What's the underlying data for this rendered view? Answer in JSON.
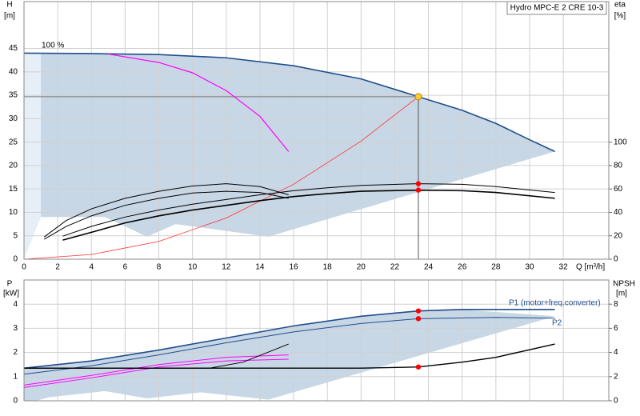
{
  "chart_data": [
    {
      "type": "line",
      "title": "Hydro MPC-E 2 CRE 10-3",
      "annotation": "100 %",
      "ylabel": "H",
      "yunit": "[m]",
      "y2label": "eta",
      "y2unit": "[%]",
      "xlabel": "Q [m³/h]",
      "xlim": [
        0,
        34.7
      ],
      "xticks": [
        0,
        2,
        4,
        6,
        8,
        10,
        12,
        14,
        16,
        18,
        20,
        22,
        24,
        26,
        28,
        30,
        32
      ],
      "ylim": [
        0,
        55
      ],
      "yticks": [
        0,
        5,
        10,
        15,
        20,
        25,
        30,
        35,
        40,
        45
      ],
      "y2lim": [
        0,
        220
      ],
      "y2ticks": [
        0,
        20,
        40,
        60,
        80,
        100
      ],
      "grid": true,
      "areas": [
        {
          "color": "#e6eff8",
          "x": [
            0,
            1,
            1,
            0
          ],
          "values": [
            44,
            44,
            9,
            0
          ]
        },
        {
          "color": "#c8d7e6",
          "x": [
            1,
            4,
            8,
            12,
            16,
            20,
            23.4,
            26,
            28,
            30,
            31.5,
            14.5,
            9,
            7.3,
            4.8,
            1
          ],
          "values": [
            44,
            43.9,
            43.7,
            43,
            41.3,
            38.5,
            34.7,
            31.8,
            29,
            25.5,
            23,
            4.8,
            7.5,
            4.8,
            9,
            9
          ]
        }
      ],
      "series": [
        {
          "color": "#1f4e8c",
          "width": 1.6,
          "x": [
            0,
            4,
            8,
            12,
            16,
            20,
            23.4,
            26,
            28,
            30,
            31.5
          ],
          "values": [
            44,
            43.9,
            43.7,
            43,
            41.3,
            38.5,
            34.7,
            31.8,
            29,
            25.5,
            23
          ]
        },
        {
          "color": "#ff00ff",
          "width": 1.2,
          "x": [
            5,
            8,
            10,
            12,
            14,
            15.7
          ],
          "values": [
            43.8,
            42,
            39.8,
            36,
            30.5,
            23
          ]
        },
        {
          "color": "#ff3030",
          "width": 0.8,
          "x": [
            0,
            4,
            8,
            12,
            16,
            20,
            23.4
          ],
          "values": [
            0,
            1,
            3.8,
            8.8,
            16,
            25.2,
            34.7
          ]
        },
        {
          "color": "#000000",
          "width": 1,
          "axis": "y2",
          "x": [
            1.2,
            2.5,
            4,
            6,
            8,
            10,
            12,
            14,
            15.7
          ],
          "values": [
            19,
            33,
            43,
            52,
            58,
            62.5,
            64.5,
            62,
            55
          ]
        },
        {
          "color": "#000000",
          "width": 1,
          "axis": "y2",
          "x": [
            1.2,
            2.5,
            4,
            6,
            8,
            10,
            12,
            14,
            15.7
          ],
          "values": [
            17,
            28,
            37,
            46,
            52,
            56.5,
            58,
            57,
            52
          ]
        },
        {
          "color": "#000000",
          "width": 1,
          "axis": "y2",
          "x": [
            2.3,
            4,
            6,
            8,
            10,
            12,
            14,
            16,
            18,
            20,
            23.4,
            26,
            28,
            31.5
          ],
          "values": [
            19.7,
            28,
            36,
            42,
            47,
            51,
            55,
            58.5,
            61,
            63,
            64.5,
            64,
            62,
            57
          ]
        },
        {
          "color": "#000000",
          "width": 1.6,
          "axis": "y2",
          "x": [
            2.3,
            4,
            6,
            8,
            10,
            12,
            14,
            16,
            18,
            20,
            23.4,
            26,
            28,
            31.5
          ],
          "values": [
            16.3,
            23,
            31,
            37,
            42,
            46,
            50,
            53.5,
            56,
            58,
            59,
            58.5,
            57,
            52
          ]
        }
      ],
      "operating_point": {
        "x": 23.4,
        "y": 34.7,
        "color": "#ffcc33"
      },
      "points": [
        {
          "x": 23.4,
          "y": 64.5,
          "axis": "y2",
          "color": "#ff0000"
        },
        {
          "x": 23.4,
          "y": 59,
          "axis": "y2",
          "color": "#ff0000"
        }
      ]
    },
    {
      "type": "line",
      "ylabel": "P",
      "yunit": "[kW]",
      "y2label": "NPSH",
      "y2unit": "[m]",
      "xlim": [
        0,
        34.7
      ],
      "ylim": [
        0,
        5
      ],
      "yticks": [
        0,
        1,
        2,
        3,
        4
      ],
      "y2lim": [
        0,
        10
      ],
      "y2ticks": [
        0,
        2,
        4,
        6,
        8
      ],
      "grid": true,
      "areas": [
        {
          "color": "#c8d7e6",
          "x": [
            0,
            4,
            8,
            12,
            16,
            20,
            23.4,
            26,
            31.5,
            14.5,
            10.5,
            7.3,
            4.8,
            1.5,
            0.7,
            0
          ],
          "values": [
            1.35,
            1.65,
            2.1,
            2.6,
            3.1,
            3.5,
            3.72,
            3.78,
            3.5,
            0.05,
            0.35,
            0.1,
            0.4,
            0.15,
            0,
            0
          ]
        }
      ],
      "series": [
        {
          "name": "P1 (motor+freq.converter)",
          "color": "#1f4e8c",
          "width": 1.6,
          "x": [
            0,
            4,
            8,
            12,
            16,
            20,
            23.4,
            26,
            31.5
          ],
          "values": [
            1.35,
            1.65,
            2.1,
            2.6,
            3.1,
            3.5,
            3.72,
            3.78,
            3.78
          ]
        },
        {
          "name": "P2",
          "color": "#1f4e8c",
          "width": 1,
          "x": [
            0,
            4,
            8,
            12,
            16,
            20,
            23.4,
            28,
            31.5
          ],
          "values": [
            1.1,
            1.45,
            1.9,
            2.4,
            2.85,
            3.2,
            3.4,
            3.45,
            3.42
          ]
        },
        {
          "color": "#ff00ff",
          "width": 1,
          "x": [
            0,
            4,
            8,
            12,
            15.7
          ],
          "values": [
            0.65,
            1.05,
            1.5,
            1.8,
            1.9
          ]
        },
        {
          "color": "#ff00ff",
          "width": 1,
          "x": [
            0,
            4,
            8,
            12,
            15.7
          ],
          "values": [
            0.55,
            0.95,
            1.4,
            1.65,
            1.72
          ]
        },
        {
          "color": "#000000",
          "width": 1,
          "axis": "y2",
          "x": [
            0,
            11,
            13,
            15.7
          ],
          "values": [
            2.7,
            2.7,
            3.2,
            4.7
          ]
        },
        {
          "color": "#000000",
          "width": 1.4,
          "axis": "y2",
          "x": [
            0,
            8,
            20,
            23.4,
            26,
            28,
            31.5
          ],
          "values": [
            2.7,
            2.7,
            2.7,
            2.8,
            3.2,
            3.6,
            4.7
          ]
        }
      ],
      "points": [
        {
          "x": 23.4,
          "y": 3.72,
          "color": "#ff0000"
        },
        {
          "x": 23.4,
          "y": 3.4,
          "color": "#ff0000"
        },
        {
          "x": 23.4,
          "y": 2.8,
          "axis": "y2",
          "color": "#ff0000"
        }
      ]
    }
  ]
}
